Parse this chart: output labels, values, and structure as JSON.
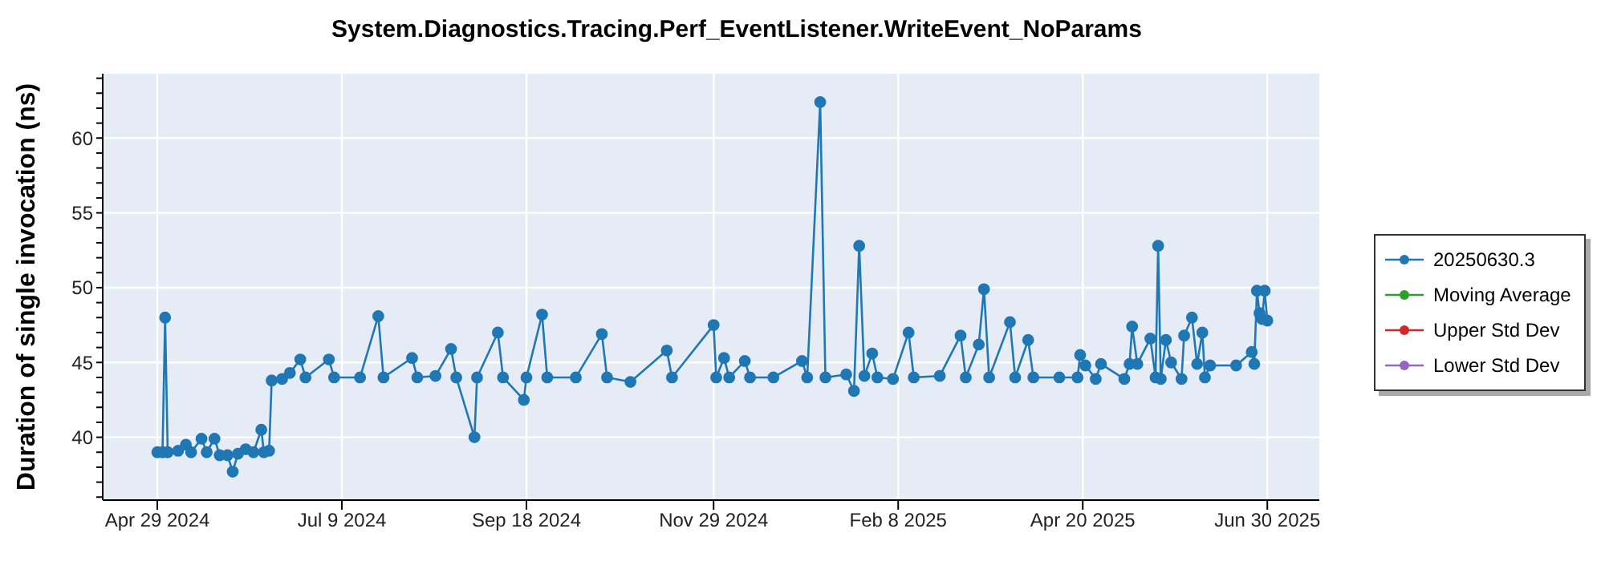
{
  "chart_data": {
    "type": "line",
    "title": "System.Diagnostics.Tracing.Perf_EventListener.WriteEvent_NoParams",
    "ylabel": "Duration of single invocation (ns)",
    "xlim": [
      "2024-04-08",
      "2025-07-20"
    ],
    "xticks": [
      {
        "value": "2024-04-29",
        "label": "Apr 29 2024"
      },
      {
        "value": "2024-07-09",
        "label": "Jul 9 2024"
      },
      {
        "value": "2024-09-18",
        "label": "Sep 18 2024"
      },
      {
        "value": "2024-11-29",
        "label": "Nov 29 2024"
      },
      {
        "value": "2025-02-08",
        "label": "Feb 8 2025"
      },
      {
        "value": "2025-04-20",
        "label": "Apr 20 2025"
      },
      {
        "value": "2025-06-30",
        "label": "Jun 30 2025"
      }
    ],
    "ylim": [
      35.8,
      64.3
    ],
    "yticks": [
      {
        "value": 36,
        "label": null
      },
      {
        "value": 37,
        "label": null
      },
      {
        "value": 38,
        "label": null
      },
      {
        "value": 39,
        "label": null
      },
      40,
      {
        "value": 41,
        "label": null
      },
      {
        "value": 42,
        "label": null
      },
      {
        "value": 43,
        "label": null
      },
      {
        "value": 44,
        "label": null
      },
      45,
      {
        "value": 46,
        "label": null
      },
      {
        "value": 47,
        "label": null
      },
      {
        "value": 48,
        "label": null
      },
      {
        "value": 49,
        "label": null
      },
      50,
      {
        "value": 51,
        "label": null
      },
      {
        "value": 52,
        "label": null
      },
      {
        "value": 53,
        "label": null
      },
      {
        "value": 54,
        "label": null
      },
      55,
      {
        "value": 56,
        "label": null
      },
      {
        "value": 57,
        "label": null
      },
      {
        "value": 58,
        "label": null
      },
      {
        "value": 59,
        "label": null
      },
      60,
      {
        "value": 61,
        "label": null
      },
      {
        "value": 62,
        "label": null
      },
      {
        "value": 63,
        "label": null
      },
      {
        "value": 64,
        "label": null
      }
    ],
    "grid": true,
    "legend": "right",
    "marker": "circle",
    "line_style": "solid",
    "series": [
      {
        "name": "20250630.3",
        "color": "#1f77b4",
        "x": [
          "2024-04-29",
          "2024-05-01",
          "2024-05-02",
          "2024-05-03",
          "2024-05-07",
          "2024-05-10",
          "2024-05-12",
          "2024-05-16",
          "2024-05-18",
          "2024-05-21",
          "2024-05-23",
          "2024-05-26",
          "2024-05-28",
          "2024-05-30",
          "2024-06-02",
          "2024-06-05",
          "2024-06-08",
          "2024-06-09",
          "2024-06-11",
          "2024-06-12",
          "2024-06-16",
          "2024-06-19",
          "2024-06-23",
          "2024-06-25",
          "2024-07-04",
          "2024-07-06",
          "2024-07-16",
          "2024-07-23",
          "2024-07-25",
          "2024-08-05",
          "2024-08-07",
          "2024-08-14",
          "2024-08-20",
          "2024-08-22",
          "2024-08-29",
          "2024-08-30",
          "2024-09-07",
          "2024-09-09",
          "2024-09-17",
          "2024-09-18",
          "2024-09-24",
          "2024-09-26",
          "2024-10-07",
          "2024-10-17",
          "2024-10-19",
          "2024-10-28",
          "2024-11-11",
          "2024-11-13",
          "2024-11-29",
          "2024-11-30",
          "2024-12-03",
          "2024-12-05",
          "2024-12-11",
          "2024-12-13",
          "2024-12-22",
          "2025-01-02",
          "2025-01-04",
          "2025-01-09",
          "2025-01-11",
          "2025-01-19",
          "2025-01-22",
          "2025-01-24",
          "2025-01-26",
          "2025-01-29",
          "2025-01-31",
          "2025-02-06",
          "2025-02-12",
          "2025-02-14",
          "2025-02-24",
          "2025-03-04",
          "2025-03-06",
          "2025-03-11",
          "2025-03-13",
          "2025-03-15",
          "2025-03-23",
          "2025-03-25",
          "2025-03-30",
          "2025-04-01",
          "2025-04-11",
          "2025-04-18",
          "2025-04-19",
          "2025-04-21",
          "2025-04-25",
          "2025-04-27",
          "2025-05-06",
          "2025-05-08",
          "2025-05-09",
          "2025-05-11",
          "2025-05-16",
          "2025-05-18",
          "2025-05-19",
          "2025-05-20",
          "2025-05-22",
          "2025-05-24",
          "2025-05-28",
          "2025-05-29",
          "2025-06-01",
          "2025-06-03",
          "2025-06-05",
          "2025-06-06",
          "2025-06-08",
          "2025-06-18",
          "2025-06-24",
          "2025-06-25",
          "2025-06-26",
          "2025-06-27",
          "2025-06-28",
          "2025-06-29",
          "2025-06-30"
        ],
        "values": [
          39.0,
          39.0,
          48.0,
          39.0,
          39.1,
          39.5,
          39.0,
          39.9,
          39.0,
          39.9,
          38.8,
          38.8,
          37.7,
          38.9,
          39.2,
          39.0,
          40.5,
          39.0,
          39.1,
          43.8,
          43.9,
          44.3,
          45.2,
          44.0,
          45.2,
          44.0,
          44.0,
          48.1,
          44.0,
          45.3,
          44.0,
          44.1,
          45.9,
          44.0,
          40.0,
          44.0,
          47.0,
          44.0,
          42.5,
          44.0,
          48.2,
          44.0,
          44.0,
          46.9,
          44.0,
          43.7,
          45.8,
          44.0,
          47.5,
          44.0,
          45.3,
          44.0,
          45.1,
          44.0,
          44.0,
          45.1,
          44.0,
          62.4,
          44.0,
          44.2,
          43.1,
          52.8,
          44.1,
          45.6,
          44.0,
          43.9,
          47.0,
          44.0,
          44.1,
          46.8,
          44.0,
          46.2,
          49.9,
          44.0,
          47.7,
          44.0,
          46.5,
          44.0,
          44.0,
          44.0,
          45.5,
          44.8,
          43.9,
          44.9,
          43.9,
          44.9,
          47.4,
          44.9,
          46.6,
          44.0,
          52.8,
          43.9,
          46.5,
          45.0,
          43.9,
          46.8,
          48.0,
          44.9,
          47.0,
          44.0,
          44.8,
          44.8,
          45.7,
          44.9,
          49.8,
          48.3,
          47.9,
          49.8,
          47.8
        ]
      },
      {
        "name": "Moving Average",
        "color": "#2ca02c"
      },
      {
        "name": "Upper Std Dev",
        "color": "#d62728"
      },
      {
        "name": "Lower Std Dev",
        "color": "#9467bd"
      }
    ]
  }
}
